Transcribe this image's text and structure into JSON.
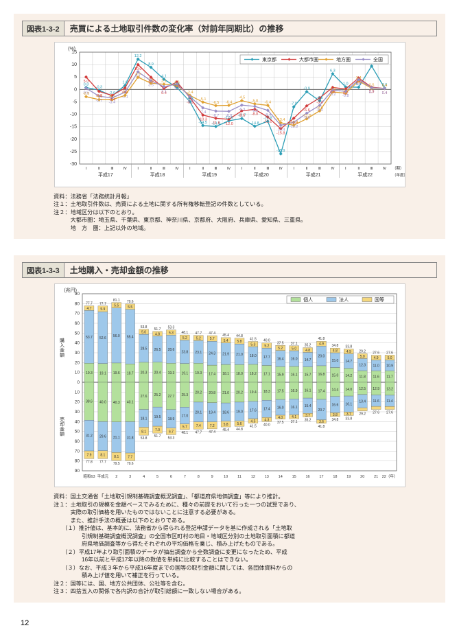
{
  "page_number": "12",
  "chart1": {
    "tag": "図表1-3-2",
    "title": "売買による土地取引件数の変化率（対前年同期比）の推移",
    "type": "line",
    "y_label": "(%)",
    "ylim": [
      -30,
      15
    ],
    "ytick_step": 5,
    "yticks": [
      -30,
      -25,
      -20,
      -15,
      -10,
      -5,
      0,
      5,
      10,
      15
    ],
    "x_year_labels": [
      "平成17",
      "平成18",
      "平成19",
      "平成20",
      "平成21",
      "平成22"
    ],
    "x_quarter_labels": [
      "Ⅰ",
      "Ⅱ",
      "Ⅲ",
      "Ⅳ"
    ],
    "x_end_label": "（期）\n（年度）",
    "background_color": "#ffffff",
    "grid_color": "#c9c9c9",
    "annotation_fontsize": 5.5,
    "series": [
      {
        "name": "東京都",
        "color": "#2a9db5",
        "marker": "diamond",
        "values": [
          0.8,
          -0.3,
          -2.6,
          1.6,
          12.2,
          8.9,
          4.1,
          0.8,
          -4.9,
          -14.5,
          -14.9,
          -12.6,
          -11.7,
          -14.8,
          -12.8,
          -25.9,
          -7.0,
          -0.9,
          -4.6,
          6.3,
          1.0,
          0.9,
          9.4,
          0.6
        ]
      },
      {
        "name": "大都市圏",
        "color": "#d23b3b",
        "marker": "diamond",
        "values": [
          5.0,
          -0.8,
          -2.4,
          0.6,
          10.0,
          4.9,
          0.4,
          3.0,
          -3.3,
          -10.3,
          -11.6,
          -12.0,
          -8.6,
          -8.0,
          -11.1,
          -15.8,
          -11.6,
          -6.6,
          -3.4,
          0.8,
          0.2,
          4.6,
          0.9,
          0.4
        ]
      },
      {
        "name": "地方圏",
        "color": "#e0a030",
        "marker": "diamond",
        "values": [
          -2.9,
          -4.1,
          -4.1,
          -2.4,
          4.9,
          2.5,
          2.1,
          1.6,
          -2.4,
          -5.1,
          -6.5,
          -6.4,
          -4.5,
          -5.8,
          -6.4,
          -13.4,
          -14.4,
          -11.8,
          -8.6,
          -1.0,
          -1.5,
          3.4,
          0.5,
          0.4
        ]
      },
      {
        "name": "全国",
        "color": "#9a8fc7",
        "marker": "diamond",
        "values": [
          0.5,
          -2.7,
          -3.4,
          -1.1,
          7.1,
          3.5,
          1.1,
          2.2,
          -2.9,
          -7.4,
          -8.7,
          -8.8,
          -6.3,
          -6.8,
          -8.4,
          -14.4,
          -13.2,
          -9.6,
          -6.4,
          -0.2,
          -0.8,
          4.0,
          0.7,
          0.4
        ]
      }
    ],
    "notes": [
      "資料：法務省「法務統計月報」",
      "注１：土地取引件数は、売買による土地に関する所有権移転登記の件数としている。",
      "注２：地域区分は以下のとおり。",
      "　　　大都市圏：埼玉県、千葉県、東京都、神奈川県、京都府、大阪府、兵庫県、愛知県、三重県。",
      "　　　地　方　圏：上記以外の地域。"
    ]
  },
  "chart2": {
    "tag": "図表1-3-3",
    "title": "土地購入・売却金額の推移",
    "type": "stacked-bar-mirror",
    "y_label_unit": "(兆円)",
    "y_label_top": "購入金額",
    "y_label_bottom": "売却金額",
    "ylim": [
      -90,
      90
    ],
    "ytick_step": 10,
    "yticks": [
      90,
      80,
      70,
      60,
      50,
      40,
      30,
      20,
      10,
      0,
      10,
      20,
      30,
      40,
      50,
      60,
      70,
      80,
      90
    ],
    "x_labels": [
      "昭和63",
      "平成元",
      "2",
      "3",
      "4",
      "5",
      "6",
      "7",
      "8",
      "9",
      "10",
      "11",
      "12",
      "13",
      "14",
      "15",
      "16",
      "17",
      "18",
      "19",
      "20",
      "21",
      "22（年）"
    ],
    "background_color": "#ffffff",
    "grid_color": "#c9c9c9",
    "annotation_fontsize": 5,
    "legend": [
      {
        "name": "個人",
        "color": "#b3e09c"
      },
      {
        "name": "法人",
        "color": "#9ec8ea"
      },
      {
        "name": "国等",
        "color": "#f4d77e"
      }
    ],
    "purchase": {
      "total": [
        77.7,
        77.7,
        81.1,
        79.6,
        53.8,
        51.7,
        53.3,
        48.1,
        47.7,
        47.4,
        45.4,
        44.8,
        41.5,
        40.0,
        37.5,
        37.1,
        35.2,
        41.8,
        34.8,
        33.8,
        29.2,
        27.6,
        27.6
      ],
      "kojin": [
        19.3,
        19.1,
        19.6,
        18.7,
        20.3,
        20.4,
        19.3,
        19.1,
        19.3,
        17.4,
        18.1,
        18.0,
        18.2,
        17.1,
        15.9,
        16.1,
        15.7,
        16.8,
        15.0,
        14.2,
        11.8,
        11.6,
        11.7
      ],
      "hojin": [
        53.7,
        52.6,
        56.0,
        55.4,
        28.5,
        26.5,
        28.6,
        23.8,
        23.1,
        24.3,
        21.9,
        21.0,
        18.0,
        17.7,
        16.4,
        16.0,
        14.7,
        20.0,
        15.0,
        14.7,
        12.3,
        11.0,
        10.9
      ],
      "koku": [
        4.7,
        5.9,
        5.5,
        5.5,
        5.0,
        4.8,
        5.3,
        5.2,
        5.2,
        5.7,
        5.4,
        5.8,
        5.3,
        5.2,
        5.2,
        5.0,
        4.8,
        4.9,
        4.8,
        4.9,
        5.0,
        4.9,
        5.0
      ]
    },
    "sale": {
      "total": [
        77.8,
        77.7,
        79.5,
        79.6,
        53.8,
        51.7,
        53.3,
        48.1,
        47.7,
        47.4,
        45.4,
        44.8,
        41.5,
        40.0,
        37.5,
        37.1,
        35.2,
        41.8,
        34.8,
        33.8,
        29.2,
        27.6,
        27.6
      ],
      "kojin": [
        38.6,
        40.0,
        40.3,
        40.1,
        27.6,
        25.2,
        27.7,
        25.3,
        20.2,
        20.8,
        21.0,
        20.2,
        19.4,
        18.3,
        17.5,
        16.9,
        16.1,
        17.4,
        14.4,
        14.0,
        12.5,
        12.9,
        13.2
      ],
      "hojin": [
        31.2,
        29.6,
        31.1,
        31.8,
        18.1,
        19.5,
        18.9,
        17.0,
        20.1,
        19.4,
        18.6,
        19.0,
        17.6,
        17.4,
        16.0,
        16.1,
        15.4,
        20.7,
        16.6,
        16.1,
        13.4,
        11.6,
        11.4
      ],
      "koku": [
        7.9,
        8.1,
        8.1,
        7.7,
        8.1,
        7.0,
        6.7,
        5.7,
        7.4,
        7.2,
        5.8,
        5.6,
        4.5,
        4.3,
        4.0,
        4.1,
        3.7,
        3.6,
        3.8,
        3.7,
        3.2,
        3.1,
        3.0
      ]
    },
    "notes": [
      "資料：国土交通省「土地取引規制基礎調査概況調査」、「都道府県地価調査」等により推計。",
      "注１：土地取引の規模を金額ベースでみるために、種々の前提をおいて行った一つの試算であり、",
      "　　　実際の取引価格を用いたものではないことに注意する必要がある。",
      "　　　また、推計手法の概要は以下のとおりである。",
      "　　（１）推計値は、基本的に、法務省から得られる登記申請データを基に作成される「土地取",
      "　　　　　引規制基礎調査概況調査」の全国市区町村の地目・地域区分別の土地取引面積に都道",
      "　　　　　府県地価調査等から得たそれぞれの平均価格を乗じ、積み上げたものである。",
      "　　（２）平成17年より取引面積のデータが抽出調査から全数調査に変更になったため、平成",
      "　　　　　16年以前と平成17年以降の数値を単純に比較することはできない。",
      "　　（３）なお、平成３年から平成16年度までの国等の取引金額に関しては、各団体資料からの",
      "　　　　　積み上げ値を用いて補正を行っている。",
      "注２：国等には、国、地方公共団体、公社等を含む。",
      "注３：四捨五入の関係で各内訳の合計が取引総額に一致しない場合がある。"
    ]
  }
}
